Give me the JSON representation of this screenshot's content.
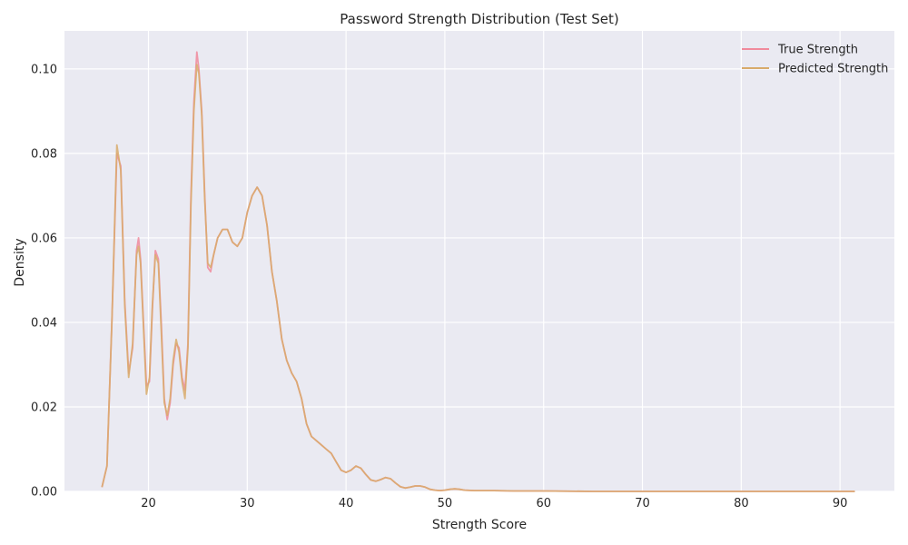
{
  "chart_data": {
    "type": "line",
    "title": "Password Strength Distribution (Test Set)",
    "xlabel": "Strength Score",
    "ylabel": "Density",
    "xlim": [
      11.5,
      95.5
    ],
    "ylim": [
      0,
      0.109
    ],
    "xticks": [
      20,
      30,
      40,
      50,
      60,
      70,
      80,
      90
    ],
    "yticks": [
      0.0,
      0.02,
      0.04,
      0.06,
      0.08,
      0.1
    ],
    "ytick_labels": [
      "0.00",
      "0.02",
      "0.04",
      "0.06",
      "0.08",
      "0.10"
    ],
    "grid": true,
    "legend": "top-right",
    "background": "#eaeaf2",
    "series": [
      {
        "name": "True Strength",
        "color": "#f08a9c",
        "x": [
          15.3,
          15.8,
          16.3,
          16.8,
          17.2,
          17.6,
          18.0,
          18.4,
          18.8,
          19.0,
          19.2,
          19.5,
          19.8,
          20.1,
          20.4,
          20.7,
          21.0,
          21.3,
          21.6,
          21.9,
          22.2,
          22.5,
          22.8,
          23.1,
          23.4,
          23.7,
          24.0,
          24.3,
          24.6,
          24.9,
          25.1,
          25.4,
          25.7,
          26.0,
          26.3,
          26.6,
          27.0,
          27.5,
          28.0,
          28.5,
          29.0,
          29.5,
          30.0,
          30.5,
          31.0,
          31.5,
          32.0,
          32.5,
          33.0,
          33.5,
          34.0,
          34.5,
          35.0,
          35.5,
          36.0,
          36.5,
          37.0,
          37.5,
          38.0,
          38.5,
          39.0,
          39.5,
          40.0,
          40.5,
          41.0,
          41.5,
          42.0,
          42.5,
          43.0,
          43.5,
          44.0,
          44.5,
          45.0,
          45.5,
          46.0,
          46.5,
          47.0,
          47.5,
          48.0,
          48.5,
          49.0,
          49.5,
          50.0,
          50.5,
          51.0,
          51.5,
          52.0,
          53.0,
          54.0,
          55.0,
          57.0,
          60.0,
          65.0,
          70.0,
          80.0,
          90.0,
          91.5
        ],
        "values": [
          0.001,
          0.006,
          0.04,
          0.08,
          0.077,
          0.045,
          0.028,
          0.034,
          0.057,
          0.06,
          0.055,
          0.04,
          0.025,
          0.026,
          0.043,
          0.057,
          0.055,
          0.04,
          0.022,
          0.017,
          0.021,
          0.03,
          0.035,
          0.034,
          0.027,
          0.024,
          0.035,
          0.07,
          0.092,
          0.104,
          0.1,
          0.09,
          0.07,
          0.053,
          0.052,
          0.056,
          0.06,
          0.062,
          0.062,
          0.059,
          0.058,
          0.06,
          0.066,
          0.07,
          0.072,
          0.07,
          0.063,
          0.052,
          0.045,
          0.036,
          0.031,
          0.028,
          0.026,
          0.022,
          0.016,
          0.013,
          0.012,
          0.011,
          0.01,
          0.009,
          0.007,
          0.005,
          0.0045,
          0.005,
          0.006,
          0.0055,
          0.004,
          0.0027,
          0.0024,
          0.0028,
          0.0033,
          0.003,
          0.002,
          0.0011,
          0.0008,
          0.001,
          0.0013,
          0.0013,
          0.001,
          0.0005,
          0.0003,
          0.0002,
          0.0003,
          0.0005,
          0.0006,
          0.0005,
          0.0003,
          0.0002,
          0.0002,
          0.0002,
          0.0001,
          0.0001,
          0.0,
          0.0,
          0.0,
          0.0,
          0.0
        ]
      },
      {
        "name": "Predicted Strength",
        "color": "#d8ab6b",
        "x": [
          15.3,
          15.8,
          16.3,
          16.8,
          17.2,
          17.6,
          18.0,
          18.4,
          18.8,
          19.0,
          19.2,
          19.5,
          19.8,
          20.1,
          20.4,
          20.7,
          21.0,
          21.3,
          21.6,
          21.9,
          22.2,
          22.5,
          22.8,
          23.1,
          23.4,
          23.7,
          24.0,
          24.3,
          24.6,
          24.9,
          25.1,
          25.4,
          25.7,
          26.0,
          26.3,
          26.6,
          27.0,
          27.5,
          28.0,
          28.5,
          29.0,
          29.5,
          30.0,
          30.5,
          31.0,
          31.5,
          32.0,
          32.5,
          33.0,
          33.5,
          34.0,
          34.5,
          35.0,
          35.5,
          36.0,
          36.5,
          37.0,
          37.5,
          38.0,
          38.5,
          39.0,
          39.5,
          40.0,
          40.5,
          41.0,
          41.5,
          42.0,
          42.5,
          43.0,
          43.5,
          44.0,
          44.5,
          45.0,
          45.5,
          46.0,
          46.5,
          47.0,
          47.5,
          48.0,
          48.5,
          49.0,
          49.5,
          50.0,
          50.5,
          51.0,
          51.5,
          52.0,
          53.0,
          54.0,
          55.0,
          57.0,
          60.0,
          65.0,
          70.0,
          80.0,
          90.0,
          91.5
        ],
        "values": [
          0.001,
          0.006,
          0.04,
          0.082,
          0.076,
          0.044,
          0.027,
          0.035,
          0.056,
          0.058,
          0.054,
          0.039,
          0.023,
          0.027,
          0.044,
          0.056,
          0.054,
          0.038,
          0.021,
          0.018,
          0.022,
          0.031,
          0.036,
          0.033,
          0.026,
          0.022,
          0.034,
          0.068,
          0.09,
          0.101,
          0.099,
          0.089,
          0.069,
          0.054,
          0.053,
          0.056,
          0.06,
          0.062,
          0.062,
          0.059,
          0.058,
          0.06,
          0.066,
          0.07,
          0.072,
          0.07,
          0.063,
          0.052,
          0.045,
          0.036,
          0.031,
          0.028,
          0.026,
          0.022,
          0.016,
          0.013,
          0.012,
          0.011,
          0.01,
          0.009,
          0.007,
          0.005,
          0.0045,
          0.005,
          0.006,
          0.0055,
          0.004,
          0.0027,
          0.0024,
          0.0028,
          0.0033,
          0.003,
          0.002,
          0.0011,
          0.0008,
          0.001,
          0.0013,
          0.0013,
          0.001,
          0.0005,
          0.0003,
          0.0002,
          0.0003,
          0.0005,
          0.0006,
          0.0005,
          0.0003,
          0.0002,
          0.0002,
          0.0002,
          0.0001,
          0.0001,
          0.0,
          0.0,
          0.0,
          0.0,
          0.0
        ]
      }
    ]
  }
}
